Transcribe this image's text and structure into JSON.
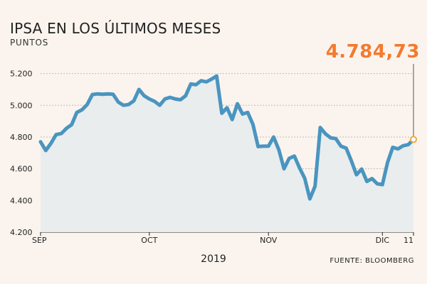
{
  "title": "IPSA EN LOS ÚLTIMOS MESES",
  "subtitle": "PUNTOS",
  "last_value_label": "4.784,73",
  "source": "FUENTE: BLOOMBERG",
  "year_label": "2019",
  "colors": {
    "line": "#4a95c0",
    "area": "#e9eded",
    "highlight": "#f47a2e",
    "marker_stroke": "#f0a93b",
    "grid": "#bbbbbb",
    "background": "#fbf4ee"
  },
  "chart_data": {
    "type": "area",
    "ylabel": "PUNTOS",
    "ylim": [
      4200,
      5270
    ],
    "yticks": [
      4200,
      4400,
      4600,
      4800,
      5000,
      5200
    ],
    "ytick_labels": [
      "4.200",
      "4.400",
      "4.600",
      "4.800",
      "5.000",
      "5.200"
    ],
    "xlim": [
      0,
      72
    ],
    "xticks": [
      {
        "x": 0,
        "label": "SEP"
      },
      {
        "x": 21,
        "label": "OCT"
      },
      {
        "x": 44,
        "label": "NOV"
      },
      {
        "x": 66,
        "label": "DIC"
      },
      {
        "x": 72,
        "label": "11"
      }
    ],
    "grid": true,
    "series": [
      {
        "values": [
          4770,
          4715,
          4760,
          4815,
          4822,
          4855,
          4878,
          4955,
          4972,
          5005,
          5068,
          5072,
          5070,
          5072,
          5070,
          5020,
          5000,
          5005,
          5028,
          5100,
          5060,
          5040,
          5025,
          5000,
          5040,
          5050,
          5040,
          5035,
          5060,
          5135,
          5130,
          5155,
          5148,
          5165,
          5185,
          4950,
          4985,
          4910,
          5010,
          4945,
          4955,
          4880,
          4740,
          4742,
          4742,
          4800,
          4720,
          4600,
          4665,
          4680,
          4605,
          4540,
          4410,
          4490,
          4860,
          4820,
          4795,
          4790,
          4742,
          4730,
          4650,
          4562,
          4598,
          4520,
          4538,
          4505,
          4500,
          4640,
          4735,
          4725,
          4745,
          4752,
          4784.73
        ]
      }
    ]
  }
}
